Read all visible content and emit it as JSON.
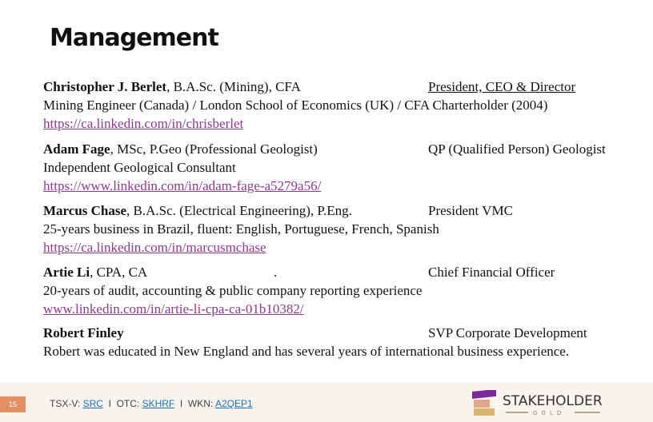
{
  "title": "Management",
  "people": [
    {
      "name": "Christopher J. Berlet",
      "credentials": ", B.A.Sc. (Mining), CFA",
      "role": "President, CEO & Director",
      "description": "Mining Engineer (Canada) / London School of Economics (UK) / CFA Charterholder (2004)",
      "link": "https://ca.linkedin.com/in/chrisberlet"
    },
    {
      "name": "Adam Fage",
      "credentials": ", MSc, P.Geo (Professional Geologist)",
      "role": "QP (Qualified Person) Geologist",
      "description": "Independent Geological Consultant",
      "link": "https://www.linkedin.com/in/adam-fage-a5279a56/"
    },
    {
      "name": "Marcus Chase",
      "credentials": ", B.A.Sc. (Electrical Engineering), P.Eng.",
      "role": "President VMC",
      "description": "25-years business in Brazil, fluent: English, Portuguese, French, Spanish",
      "link": "https://ca.linkedin.com/in/marcusmchase"
    },
    {
      "name": "Artie Li",
      "credentials": ", CPA, CA",
      "dot": ".",
      "role": "Chief Financial Officer",
      "description": "20-years of audit, accounting & public company reporting experience",
      "link": "www.linkedin.com/in/artie-li-cpa-ca-01b10382/"
    },
    {
      "name": "Robert Finley",
      "credentials": "",
      "role": "SVP Corporate Development",
      "description": "Robert was educated in New England and has several years of international business experience."
    }
  ],
  "footer": {
    "page": "15",
    "tsx_label": "TSX-V: ",
    "tsx": "SRC",
    "sep": "  I  ",
    "otc_label": "OTC: ",
    "otc": "SKHRF",
    "wkn_label": "WKN: ",
    "wkn": "A2QEP1",
    "logo_text": "STAKEHOLDER",
    "logo_sub": "G O L D"
  },
  "colors": {
    "link": "#8b3a8b",
    "page_badge": "#e58f63",
    "footer_link": "#1f6fb8"
  }
}
